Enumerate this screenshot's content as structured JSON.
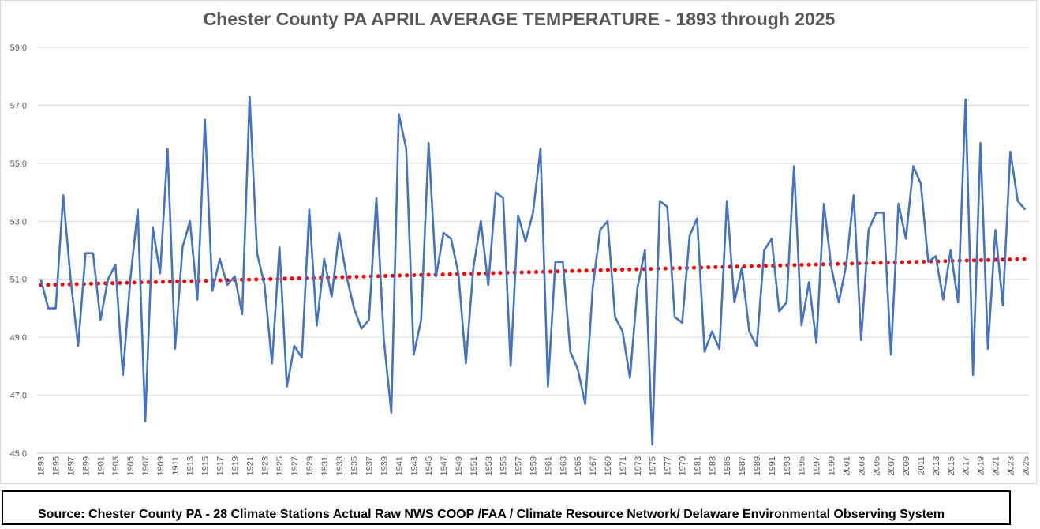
{
  "chart_data": {
    "type": "line",
    "title": "Chester County PA APRIL AVERAGE TEMPERATURE - 1893 through 2025",
    "xlabel": "",
    "ylabel": "",
    "ylim": [
      45,
      59
    ],
    "yticks": [
      "59.0",
      "57.0",
      "55.0",
      "53.0",
      "51.0",
      "49.0",
      "47.0",
      "45.0"
    ],
    "ytick_values": [
      59,
      57,
      55,
      53,
      51,
      49,
      47,
      45
    ],
    "x_start": 1893,
    "x_end": 2025,
    "x_tick_step": 2,
    "grid": true,
    "legend": "none",
    "series": [
      {
        "name": "",
        "color": "#4472c4",
        "style": "solid",
        "values": [
          51.0,
          50.0,
          50.0,
          53.9,
          51.0,
          48.7,
          51.9,
          51.9,
          49.6,
          51.0,
          51.5,
          47.7,
          51.0,
          53.4,
          46.1,
          52.8,
          51.2,
          55.5,
          48.6,
          52.1,
          53.0,
          50.3,
          56.5,
          50.6,
          51.7,
          50.8,
          51.1,
          49.8,
          57.3,
          51.9,
          50.8,
          48.1,
          52.1,
          47.3,
          48.7,
          48.3,
          53.4,
          49.4,
          51.7,
          50.4,
          52.6,
          51.1,
          50.0,
          49.3,
          49.6,
          53.8,
          48.9,
          46.4,
          56.7,
          55.5,
          48.4,
          49.6,
          55.7,
          51.1,
          52.6,
          52.4,
          51.2,
          48.1,
          51.4,
          53.0,
          50.8,
          54.0,
          53.8,
          48.0,
          53.2,
          52.3,
          53.3,
          55.5,
          47.3,
          51.6,
          51.6,
          48.5,
          47.9,
          46.7,
          50.7,
          52.7,
          53.0,
          49.7,
          49.2,
          47.6,
          50.7,
          52.0,
          45.3,
          53.7,
          53.5,
          49.7,
          49.5,
          52.5,
          53.1,
          48.5,
          49.2,
          48.6,
          53.7,
          50.2,
          51.4,
          49.2,
          48.7,
          52.0,
          52.4,
          49.9,
          50.2,
          54.9,
          49.4,
          50.9,
          48.8,
          53.6,
          51.4,
          50.2,
          51.5,
          53.9,
          48.9,
          52.7,
          53.3,
          53.3,
          48.4,
          53.6,
          52.4,
          54.9,
          54.3,
          51.6,
          51.8,
          50.3,
          52.0,
          50.2,
          57.2,
          47.7,
          55.7,
          48.6,
          52.7,
          50.1,
          55.4,
          53.7,
          53.4
        ]
      },
      {
        "name": "",
        "color": "#ff0000",
        "style": "dotted-trendline",
        "values": [
          50.8,
          51.7
        ]
      }
    ]
  },
  "source_note": "Source: Chester County PA - 28 Climate Stations Actual Raw NWS COOP /FAA / Climate Resource Network/ Delaware Environmental Observing System"
}
